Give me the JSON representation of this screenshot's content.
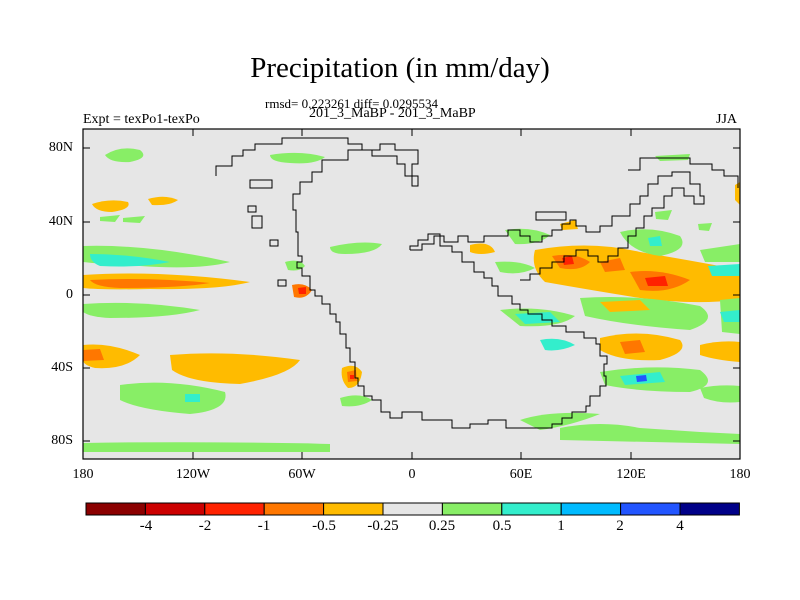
{
  "title": "Precipitation (in mm/day)",
  "stats": "rmsd= 0.223261 diff= 0.0295534",
  "case_line": "201_3_MaBP - 201_3_MaBP",
  "expt_label": "Expt = texPo1-texPo",
  "season": "JJA",
  "lat_labels": [
    "80N",
    "40N",
    "0",
    "40S",
    "80S"
  ],
  "lon_labels": [
    "180",
    "120W",
    "60W",
    "0",
    "60E",
    "120E",
    "180"
  ],
  "colorbar": {
    "colors": [
      "#8b0000",
      "#cc0000",
      "#ff2200",
      "#ff7700",
      "#ffbb00",
      "#e6e6e6",
      "#88ee66",
      "#33eecc",
      "#00bbff",
      "#2255ff",
      "#000088"
    ],
    "labels": [
      "-4",
      "-2",
      "-1",
      "-0.5",
      "-0.25",
      "0.25",
      "0.5",
      "1",
      "2",
      "4"
    ]
  },
  "colors": {
    "ocean_background": "#e6e6e6",
    "coastline": "#000000"
  }
}
